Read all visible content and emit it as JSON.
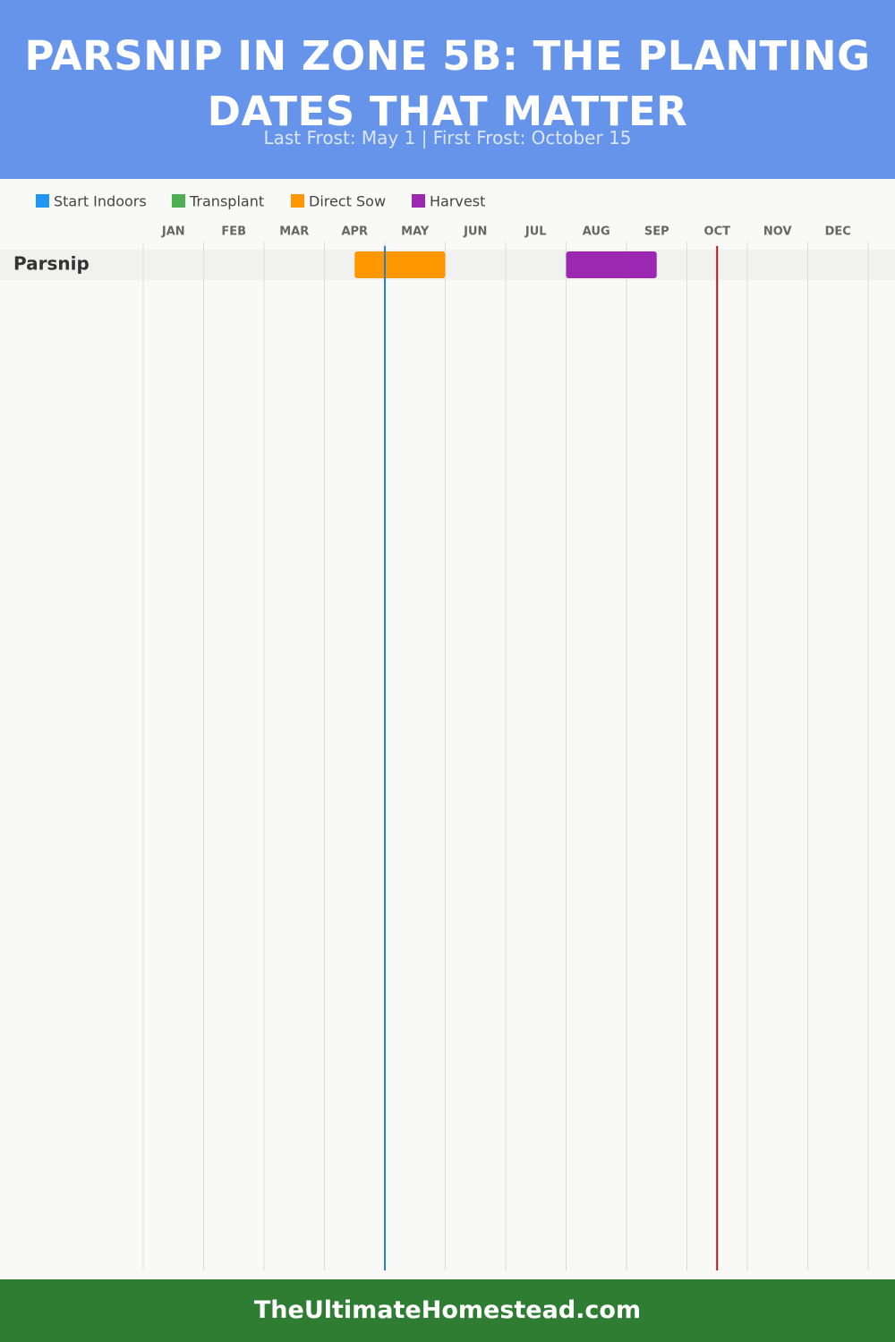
{
  "chart_data": {
    "type": "gantt",
    "title": "PARSNIP IN ZONE 5B: THE PLANTING DATES THAT MATTER",
    "subtitle": "Last Frost: May 1 | First Frost: October 15",
    "series": [
      {
        "name": "Start Indoors",
        "color": "#2196f3"
      },
      {
        "name": "Transplant",
        "color": "#4caf50"
      },
      {
        "name": "Direct Sow",
        "color": "#ff9800"
      },
      {
        "name": "Harvest",
        "color": "#9c27b0"
      }
    ],
    "categories": [
      "JAN",
      "FEB",
      "MAR",
      "APR",
      "MAY",
      "JUN",
      "JUL",
      "AUG",
      "SEP",
      "OCT",
      "NOV",
      "DEC"
    ],
    "xlim": [
      0,
      12
    ],
    "rows": [
      {
        "name": "Parsnip",
        "bars": [
          {
            "series": 2,
            "start": 3.5,
            "end": 5
          },
          {
            "series": 3,
            "start": 7,
            "end": 8.5
          }
        ]
      }
    ],
    "frost_lines": [
      {
        "value": 4,
        "color": "#2a7fd4"
      },
      {
        "value": 9.5,
        "color": "#a31d1d"
      }
    ],
    "footer": "TheUltimateHomestead.com"
  }
}
